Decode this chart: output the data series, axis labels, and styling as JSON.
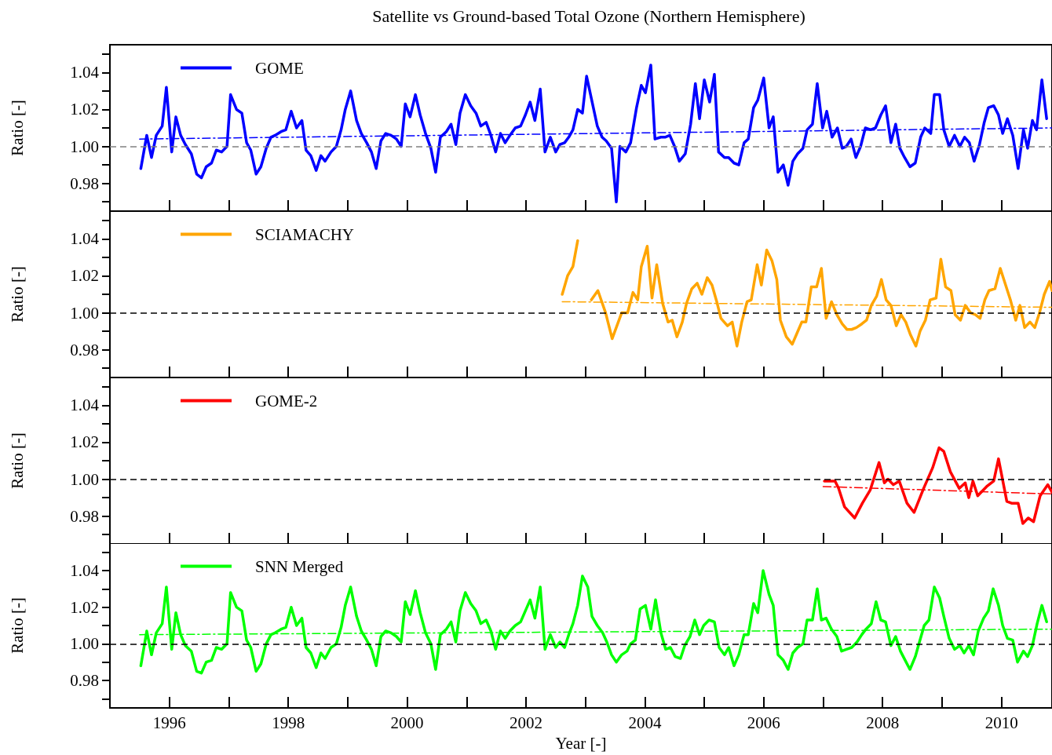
{
  "chart_data": [
    {
      "type": "line",
      "title": "Satellite vs Ground-based Total Ozone (Northern Hemisphere)",
      "ylabel": "Ratio [-]",
      "legend": "top left",
      "tick_labels": "y",
      "xlim": [
        1995,
        2010.85
      ],
      "xticks": [
        1996,
        {
          "value": 1997,
          "label": null
        },
        1998,
        {
          "value": 1999,
          "label": null
        },
        2000,
        {
          "value": 2001,
          "label": null
        },
        2002,
        {
          "value": 2003,
          "label": null
        },
        2004,
        {
          "value": 2005,
          "label": null
        },
        2006,
        {
          "value": 2007,
          "label": null
        },
        2008,
        {
          "value": 2009,
          "label": null
        },
        2010
      ],
      "ylim": [
        0.965,
        1.055
      ],
      "yticks": [
        {
          "value": 0.97,
          "label": null
        },
        {
          "value": 0.98,
          "label": "0.98"
        },
        {
          "value": 0.99,
          "label": null
        },
        {
          "value": 1,
          "label": "1.00"
        },
        {
          "value": 1.01,
          "label": null
        },
        {
          "value": 1.02,
          "label": "1.02"
        },
        {
          "value": 1.03,
          "label": null
        },
        {
          "value": 1.04,
          "label": "1.04"
        },
        {
          "value": 1.05,
          "label": null
        }
      ],
      "ref_lines": [
        {
          "axis": "y",
          "value": 1,
          "color": "#808080",
          "line_style": "dashed"
        }
      ],
      "series": [
        {
          "name": "GOME",
          "color": "#0000ff",
          "x": [
            1995.52,
            1995.62,
            1995.7,
            1995.78,
            1995.88,
            1995.95,
            1996.04,
            1996.11,
            1996.19,
            1996.27,
            1996.37,
            1996.46,
            1996.54,
            1996.62,
            1996.71,
            1996.79,
            1996.88,
            1996.97,
            1997.03,
            1997.13,
            1997.22,
            1997.3,
            1997.37,
            1997.46,
            1997.54,
            1997.63,
            1997.71,
            1997.78,
            1997.88,
            1997.96,
            1998.05,
            1998.14,
            1998.23,
            1998.3,
            1998.38,
            1998.47,
            1998.55,
            1998.62,
            1998.72,
            1998.81,
            1998.89,
            1998.96,
            1999.05,
            1999.15,
            1999.23,
            1999.32,
            1999.4,
            1999.48,
            1999.56,
            1999.64,
            1999.73,
            1999.82,
            1999.9,
            1999.97,
            2000.05,
            2000.14,
            2000.22,
            2000.31,
            2000.4,
            2000.48,
            2000.56,
            2000.66,
            2000.74,
            2000.82,
            2000.89,
            2000.98,
            2001.07,
            2001.16,
            2001.24,
            2001.33,
            2001.41,
            2001.49,
            2001.57,
            2001.65,
            2001.73,
            2001.82,
            2001.91,
            2001.99,
            2002.07,
            2002.15,
            2002.24,
            2002.32,
            2002.41,
            2002.5,
            2002.57,
            2002.65,
            2002.72,
            2002.79,
            2002.87,
            2002.95,
            2003.02,
            2003.1,
            2003.2,
            2003.28,
            2003.35,
            2003.44,
            2003.52,
            2003.58,
            2003.68,
            2003.76,
            2003.86,
            2003.94,
            2004.01,
            2004.1,
            2004.17,
            2004.27,
            2004.34,
            2004.42,
            2004.5,
            2004.58,
            2004.68,
            2004.77,
            2004.85,
            2004.92,
            2005.0,
            2005.09,
            2005.17,
            2005.24,
            2005.34,
            2005.41,
            2005.5,
            2005.58,
            2005.67,
            2005.74,
            2005.83,
            2005.9,
            2006.0,
            2006.09,
            2006.16,
            2006.24,
            2006.33,
            2006.41,
            2006.49,
            2006.57,
            2006.66,
            2006.73,
            2006.82,
            2006.9,
            2006.99,
            2007.06,
            2007.15,
            2007.24,
            2007.32,
            2007.39,
            2007.47,
            2007.55,
            2007.63,
            2007.71,
            2007.8,
            2007.88,
            2007.97,
            2008.05,
            2008.14,
            2008.22,
            2008.29,
            2008.37,
            2008.46,
            2008.55,
            2008.64,
            2008.71,
            2008.81,
            2008.87,
            2008.96,
            2009.03,
            2009.12,
            2009.21,
            2009.3,
            2009.38,
            2009.46,
            2009.54,
            2009.63,
            2009.71,
            2009.78,
            2009.87,
            2009.95,
            2010.02,
            2010.1,
            2010.19,
            2010.28,
            2010.37,
            2010.44,
            2010.52,
            2010.59,
            2010.68,
            2010.76
          ],
          "values": [
            0.988,
            1.006,
            0.994,
            1.006,
            1.011,
            1.032,
            0.997,
            1.016,
            1.006,
            1.001,
            0.996,
            0.985,
            0.983,
            0.989,
            0.991,
            0.998,
            0.997,
            1.0,
            1.028,
            1.02,
            1.018,
            1.002,
            0.998,
            0.985,
            0.989,
            0.999,
            1.005,
            1.006,
            1.008,
            1.009,
            1.019,
            1.01,
            1.014,
            0.998,
            0.995,
            0.987,
            0.995,
            0.992,
            0.997,
            1.0,
            1.009,
            1.02,
            1.03,
            1.014,
            1.007,
            1.002,
            0.997,
            0.988,
            1.003,
            1.007,
            1.006,
            1.004,
            1.0,
            1.023,
            1.016,
            1.028,
            1.017,
            1.007,
            0.999,
            0.986,
            1.005,
            1.008,
            1.012,
            1.001,
            1.018,
            1.028,
            1.022,
            1.018,
            1.011,
            1.013,
            1.006,
            0.997,
            1.007,
            1.002,
            1.006,
            1.01,
            1.011,
            1.017,
            1.024,
            1.014,
            1.031,
            0.997,
            1.005,
            0.997,
            1.001,
            1.002,
            1.005,
            1.009,
            1.02,
            1.018,
            1.038,
            1.026,
            1.011,
            1.005,
            1.003,
            0.999,
            0.97,
            1.0,
            0.997,
            1.002,
            1.021,
            1.033,
            1.029,
            1.044,
            1.004,
            1.005,
            1.005,
            1.006,
            1.0,
            0.992,
            0.996,
            1.012,
            1.034,
            1.015,
            1.036,
            1.024,
            1.039,
            0.997,
            0.994,
            0.994,
            0.991,
            0.99,
            1.002,
            1.004,
            1.021,
            1.025,
            1.037,
            1.01,
            1.016,
            0.986,
            0.99,
            0.979,
            0.992,
            0.996,
            0.999,
            1.009,
            1.012,
            1.034,
            1.01,
            1.019,
            1.005,
            1.01,
            0.999,
            1.0,
            1.004,
            0.994,
            1.0,
            1.01,
            1.009,
            1.01,
            1.017,
            1.022,
            1.002,
            1.012,
            0.999,
            0.994,
            0.989,
            0.991,
            1.005,
            1.01,
            1.007,
            1.028,
            1.028,
            1.009,
            1.0,
            1.006,
            1.0,
            1.005,
            1.002,
            0.992,
            1.001,
            1.013,
            1.021,
            1.022,
            1.017,
            1.007,
            1.015,
            1.006,
            0.988,
            1.009,
            0.999,
            1.014,
            1.009,
            1.036,
            1.015
          ]
        },
        {
          "color": "#0000ff",
          "line_style": "dashdot",
          "x": [
            1995.5,
            2010.85
          ],
          "values": [
            1.004,
            1.01
          ]
        }
      ]
    },
    {
      "type": "line",
      "ylabel": "Ratio [-]",
      "legend": "top left",
      "tick_labels": "y",
      "xlim": [
        1995,
        2010.85
      ],
      "xticks": [
        1996,
        {
          "value": 1997,
          "label": null
        },
        1998,
        {
          "value": 1999,
          "label": null
        },
        2000,
        {
          "value": 2001,
          "label": null
        },
        2002,
        {
          "value": 2003,
          "label": null
        },
        2004,
        {
          "value": 2005,
          "label": null
        },
        2006,
        {
          "value": 2007,
          "label": null
        },
        2008,
        {
          "value": 2009,
          "label": null
        },
        2010
      ],
      "ylim": [
        0.965,
        1.055
      ],
      "yticks": [
        {
          "value": 0.97,
          "label": null
        },
        {
          "value": 0.98,
          "label": "0.98"
        },
        {
          "value": 0.99,
          "label": null
        },
        {
          "value": 1,
          "label": "1.00"
        },
        {
          "value": 1.01,
          "label": null
        },
        {
          "value": 1.02,
          "label": "1.02"
        },
        {
          "value": 1.03,
          "label": null
        },
        {
          "value": 1.04,
          "label": "1.04"
        },
        {
          "value": 1.05,
          "label": null
        }
      ],
      "ref_lines": [
        {
          "axis": "y",
          "value": 1,
          "color": "#000000",
          "line_style": "dashed"
        }
      ],
      "series": [
        {
          "name": "SCIAMACHY",
          "color": "#ffa500",
          "x": [
            2002.61,
            2002.7,
            2002.79,
            2002.87,
            2002.91,
            2002.99,
            2003.1,
            2003.21,
            2003.34,
            2003.45,
            2003.61,
            2003.71,
            2003.8,
            2003.88,
            2003.94,
            2004.04,
            2004.12,
            2004.2,
            2004.3,
            2004.39,
            2004.46,
            2004.54,
            2004.63,
            2004.7,
            2004.79,
            2004.88,
            2004.96,
            2005.05,
            2005.13,
            2005.21,
            2005.28,
            2005.39,
            2005.47,
            2005.55,
            2005.63,
            2005.72,
            2005.79,
            2005.89,
            2005.96,
            2006.05,
            2006.14,
            2006.22,
            2006.28,
            2006.38,
            2006.48,
            2006.56,
            2006.64,
            2006.71,
            2006.8,
            2006.89,
            2006.97,
            2007.05,
            2007.14,
            2007.23,
            2007.32,
            2007.4,
            2007.48,
            2007.56,
            2007.65,
            2007.73,
            2007.81,
            2007.9,
            2007.98,
            2008.06,
            2008.14,
            2008.23,
            2008.31,
            2008.39,
            2008.47,
            2008.56,
            2008.63,
            2008.72,
            2008.8,
            2008.9,
            2008.98,
            2009.06,
            2009.15,
            2009.22,
            2009.31,
            2009.39,
            2009.48,
            2009.56,
            2009.64,
            2009.72,
            2009.79,
            2009.89,
            2009.98,
            2010.07,
            2010.15,
            2010.24,
            2010.31,
            2010.39,
            2010.48,
            2010.56,
            2010.64,
            2010.72,
            2010.81,
            2010.85
          ],
          "values": [
            1.01,
            1.02,
            1.025,
            1.039,
            null,
            null,
            1.007,
            1.012,
            1.0,
            0.986,
            1.0,
            1.0,
            1.011,
            1.007,
            1.025,
            1.036,
            1.008,
            1.026,
            1.005,
            0.995,
            0.996,
            0.987,
            0.995,
            1.005,
            1.013,
            1.016,
            1.01,
            1.019,
            1.015,
            1.006,
            0.997,
            0.993,
            0.995,
            0.982,
            0.995,
            1.006,
            1.007,
            1.026,
            1.015,
            1.034,
            1.028,
            1.018,
            0.996,
            0.987,
            0.983,
            0.989,
            0.995,
            0.995,
            1.014,
            1.014,
            1.024,
            0.997,
            1.006,
            0.999,
            0.994,
            0.991,
            0.991,
            0.992,
            0.994,
            0.996,
            1.004,
            1.009,
            1.018,
            1.007,
            1.004,
            0.993,
            0.999,
            0.995,
            0.988,
            0.982,
            0.99,
            0.996,
            1.007,
            1.008,
            1.029,
            1.014,
            1.012,
            0.999,
            0.996,
            1.004,
            1.0,
            0.999,
            0.997,
            1.007,
            1.012,
            1.013,
            1.024,
            1.015,
            1.007,
            0.996,
            1.004,
            0.992,
            0.995,
            0.992,
            1.0,
            1.01,
            1.017,
            1.012
          ]
        },
        {
          "color": "#ffa500",
          "line_style": "dashdot",
          "x": [
            2002.61,
            2010.85
          ],
          "values": [
            1.006,
            1.003
          ]
        }
      ]
    },
    {
      "type": "line",
      "ylabel": "Ratio [-]",
      "legend": "top left",
      "tick_labels": "y",
      "xlim": [
        1995,
        2010.85
      ],
      "xticks": [
        1996,
        {
          "value": 1997,
          "label": null
        },
        1998,
        {
          "value": 1999,
          "label": null
        },
        2000,
        {
          "value": 2001,
          "label": null
        },
        2002,
        {
          "value": 2003,
          "label": null
        },
        2004,
        {
          "value": 2005,
          "label": null
        },
        2006,
        {
          "value": 2007,
          "label": null
        },
        2008,
        {
          "value": 2009,
          "label": null
        },
        2010
      ],
      "ylim": [
        0.965,
        1.055
      ],
      "yticks": [
        {
          "value": 0.97,
          "label": null
        },
        {
          "value": 0.98,
          "label": "0.98"
        },
        {
          "value": 0.99,
          "label": null
        },
        {
          "value": 1,
          "label": "1.00"
        },
        {
          "value": 1.01,
          "label": null
        },
        {
          "value": 1.02,
          "label": "1.02"
        },
        {
          "value": 1.03,
          "label": null
        },
        {
          "value": 1.04,
          "label": "1.04"
        },
        {
          "value": 1.05,
          "label": null
        }
      ],
      "ref_lines": [
        {
          "axis": "y",
          "value": 1,
          "color": "#000000",
          "line_style": "dashed"
        }
      ],
      "series": [
        {
          "name": "GOME-2",
          "color": "#ff0000",
          "x": [
            2007.02,
            2007.2,
            2007.26,
            2007.36,
            2007.53,
            2007.66,
            2007.79,
            2007.94,
            2008.03,
            2008.09,
            2008.18,
            2008.28,
            2008.41,
            2008.53,
            2008.69,
            2008.84,
            2008.95,
            2009.03,
            2009.14,
            2009.29,
            2009.39,
            2009.45,
            2009.52,
            2009.6,
            2009.75,
            2009.87,
            2009.95,
            2010.09,
            2010.17,
            2010.28,
            2010.36,
            2010.45,
            2010.54,
            2010.65,
            2010.78,
            2010.85
          ],
          "values": [
            0.999,
            0.999,
            0.995,
            0.985,
            0.979,
            0.987,
            0.994,
            1.009,
            0.998,
            1.0,
            0.997,
            0.999,
            0.987,
            0.982,
            0.995,
            1.006,
            1.017,
            1.015,
            1.004,
            0.995,
            0.998,
            0.99,
            0.999,
            0.991,
            0.996,
            0.999,
            1.011,
            0.988,
            0.987,
            0.987,
            0.976,
            0.979,
            0.977,
            0.991,
            0.997,
            0.993
          ]
        },
        {
          "color": "#ff0000",
          "line_style": "dashdot",
          "x": [
            2007.0,
            2010.85
          ],
          "values": [
            0.996,
            0.992
          ]
        }
      ]
    },
    {
      "type": "line",
      "ylabel": "Ratio [-]",
      "xlabel": "Year [-]",
      "legend": "top left",
      "xlim": [
        1995,
        2010.85
      ],
      "xticks": [
        1996,
        {
          "value": 1997,
          "label": null
        },
        1998,
        {
          "value": 1999,
          "label": null
        },
        2000,
        {
          "value": 2001,
          "label": null
        },
        2002,
        {
          "value": 2003,
          "label": null
        },
        2004,
        {
          "value": 2005,
          "label": null
        },
        2006,
        {
          "value": 2007,
          "label": null
        },
        2008,
        {
          "value": 2009,
          "label": null
        },
        2010
      ],
      "ylim": [
        0.965,
        1.055
      ],
      "yticks": [
        {
          "value": 0.97,
          "label": null
        },
        {
          "value": 0.98,
          "label": "0.98"
        },
        {
          "value": 0.99,
          "label": null
        },
        {
          "value": 1,
          "label": "1.00"
        },
        {
          "value": 1.01,
          "label": null
        },
        {
          "value": 1.02,
          "label": "1.02"
        },
        {
          "value": 1.03,
          "label": null
        },
        {
          "value": 1.04,
          "label": "1.04"
        },
        {
          "value": 1.05,
          "label": null
        }
      ],
      "ref_lines": [
        {
          "axis": "y",
          "value": 1,
          "color": "#000000",
          "line_style": "dashed"
        }
      ],
      "series": [
        {
          "name": "SNN Merged",
          "color": "#00ff00",
          "x": [
            1995.52,
            1995.62,
            1995.7,
            1995.78,
            1995.88,
            1995.95,
            1996.04,
            1996.11,
            1996.19,
            1996.27,
            1996.37,
            1996.46,
            1996.54,
            1996.62,
            1996.71,
            1996.79,
            1996.88,
            1996.97,
            1997.03,
            1997.13,
            1997.22,
            1997.3,
            1997.37,
            1997.46,
            1997.54,
            1997.63,
            1997.71,
            1997.78,
            1997.88,
            1997.96,
            1998.05,
            1998.14,
            1998.23,
            1998.3,
            1998.38,
            1998.47,
            1998.55,
            1998.62,
            1998.72,
            1998.81,
            1998.89,
            1998.96,
            1999.05,
            1999.15,
            1999.23,
            1999.32,
            1999.4,
            1999.48,
            1999.56,
            1999.64,
            1999.73,
            1999.82,
            1999.9,
            1999.97,
            2000.05,
            2000.14,
            2000.22,
            2000.31,
            2000.4,
            2000.48,
            2000.56,
            2000.66,
            2000.74,
            2000.82,
            2000.89,
            2000.98,
            2001.07,
            2001.16,
            2001.24,
            2001.33,
            2001.41,
            2001.49,
            2001.57,
            2001.65,
            2001.73,
            2001.82,
            2001.91,
            2001.99,
            2002.07,
            2002.15,
            2002.24,
            2002.32,
            2002.41,
            2002.5,
            2002.57,
            2002.65,
            2002.72,
            2002.79,
            2002.87,
            2002.95,
            2003.04,
            2003.11,
            2003.2,
            2003.29,
            2003.36,
            2003.44,
            2003.52,
            2003.61,
            2003.7,
            2003.76,
            2003.84,
            2003.92,
            2004.01,
            2004.1,
            2004.18,
            2004.27,
            2004.35,
            2004.43,
            2004.51,
            2004.6,
            2004.67,
            2004.76,
            2004.84,
            2004.92,
            2004.99,
            2005.08,
            2005.17,
            2005.25,
            2005.34,
            2005.41,
            2005.5,
            2005.58,
            2005.67,
            2005.74,
            2005.83,
            2005.9,
            2005.99,
            2006.09,
            2006.16,
            2006.24,
            2006.33,
            2006.41,
            2006.49,
            2006.57,
            2006.66,
            2006.73,
            2006.82,
            2006.9,
            2006.97,
            2007.05,
            2007.14,
            2007.23,
            2007.31,
            2007.39,
            2007.48,
            2007.57,
            2007.65,
            2007.72,
            2007.81,
            2007.89,
            2007.97,
            2008.05,
            2008.14,
            2008.22,
            2008.3,
            2008.38,
            2008.46,
            2008.55,
            2008.62,
            2008.7,
            2008.78,
            2008.87,
            2008.96,
            2009.03,
            2009.12,
            2009.21,
            2009.3,
            2009.37,
            2009.45,
            2009.53,
            2009.61,
            2009.7,
            2009.78,
            2009.86,
            2009.95,
            2010.02,
            2010.1,
            2010.19,
            2010.27,
            2010.37,
            2010.44,
            2010.52,
            2010.6,
            2010.68,
            2010.76
          ],
          "values": [
            0.988,
            1.007,
            0.994,
            1.006,
            1.011,
            1.031,
            0.997,
            1.017,
            1.005,
            0.999,
            0.996,
            0.985,
            0.984,
            0.99,
            0.991,
            0.998,
            0.997,
            1.0,
            1.028,
            1.02,
            1.018,
            1.002,
            0.998,
            0.985,
            0.989,
            1.0,
            1.005,
            1.006,
            1.008,
            1.009,
            1.02,
            1.01,
            1.014,
            0.998,
            0.995,
            0.987,
            0.995,
            0.992,
            0.998,
            1.0,
            1.009,
            1.021,
            1.031,
            1.015,
            1.007,
            1.002,
            0.997,
            0.988,
            1.004,
            1.007,
            1.006,
            1.004,
            1.001,
            1.023,
            1.016,
            1.029,
            1.017,
            1.006,
            1.0,
            0.986,
            1.005,
            1.008,
            1.012,
            1.001,
            1.018,
            1.028,
            1.022,
            1.018,
            1.011,
            1.013,
            1.007,
            0.997,
            1.007,
            1.003,
            1.007,
            1.01,
            1.012,
            1.018,
            1.024,
            1.014,
            1.031,
            0.997,
            1.005,
            0.998,
            1.001,
            0.998,
            1.005,
            1.011,
            1.021,
            1.037,
            1.031,
            1.015,
            1.01,
            1.006,
            1.001,
            0.994,
            0.99,
            0.994,
            0.996,
            1.0,
            1.002,
            1.019,
            1.021,
            1.008,
            1.024,
            1.006,
            0.997,
            0.998,
            0.993,
            0.992,
            0.999,
            1.004,
            1.013,
            1.005,
            1.01,
            1.013,
            1.012,
            0.998,
            0.994,
            0.998,
            0.988,
            0.994,
            1.005,
            1.005,
            1.022,
            1.017,
            1.04,
            1.027,
            1.021,
            0.994,
            0.991,
            0.986,
            0.995,
            0.998,
            1.0,
            1.013,
            1.013,
            1.03,
            1.013,
            1.014,
            1.008,
            1.004,
            0.996,
            0.997,
            0.998,
            1.001,
            1.005,
            1.008,
            1.011,
            1.023,
            1.013,
            1.012,
            0.999,
            1.004,
            0.996,
            0.991,
            0.986,
            0.993,
            1.001,
            1.01,
            1.013,
            1.031,
            1.025,
            1.015,
            1.003,
            0.997,
            0.999,
            0.995,
            0.999,
            0.994,
            1.007,
            1.014,
            1.018,
            1.03,
            1.021,
            1.01,
            1.003,
            1.002,
            0.99,
            0.996,
            0.993,
            0.999,
            1.011,
            1.021,
            1.012
          ]
        },
        {
          "color": "#00ff00",
          "line_style": "dashdot",
          "x": [
            1995.5,
            2010.85
          ],
          "values": [
            1.005,
            1.008
          ]
        }
      ]
    }
  ]
}
